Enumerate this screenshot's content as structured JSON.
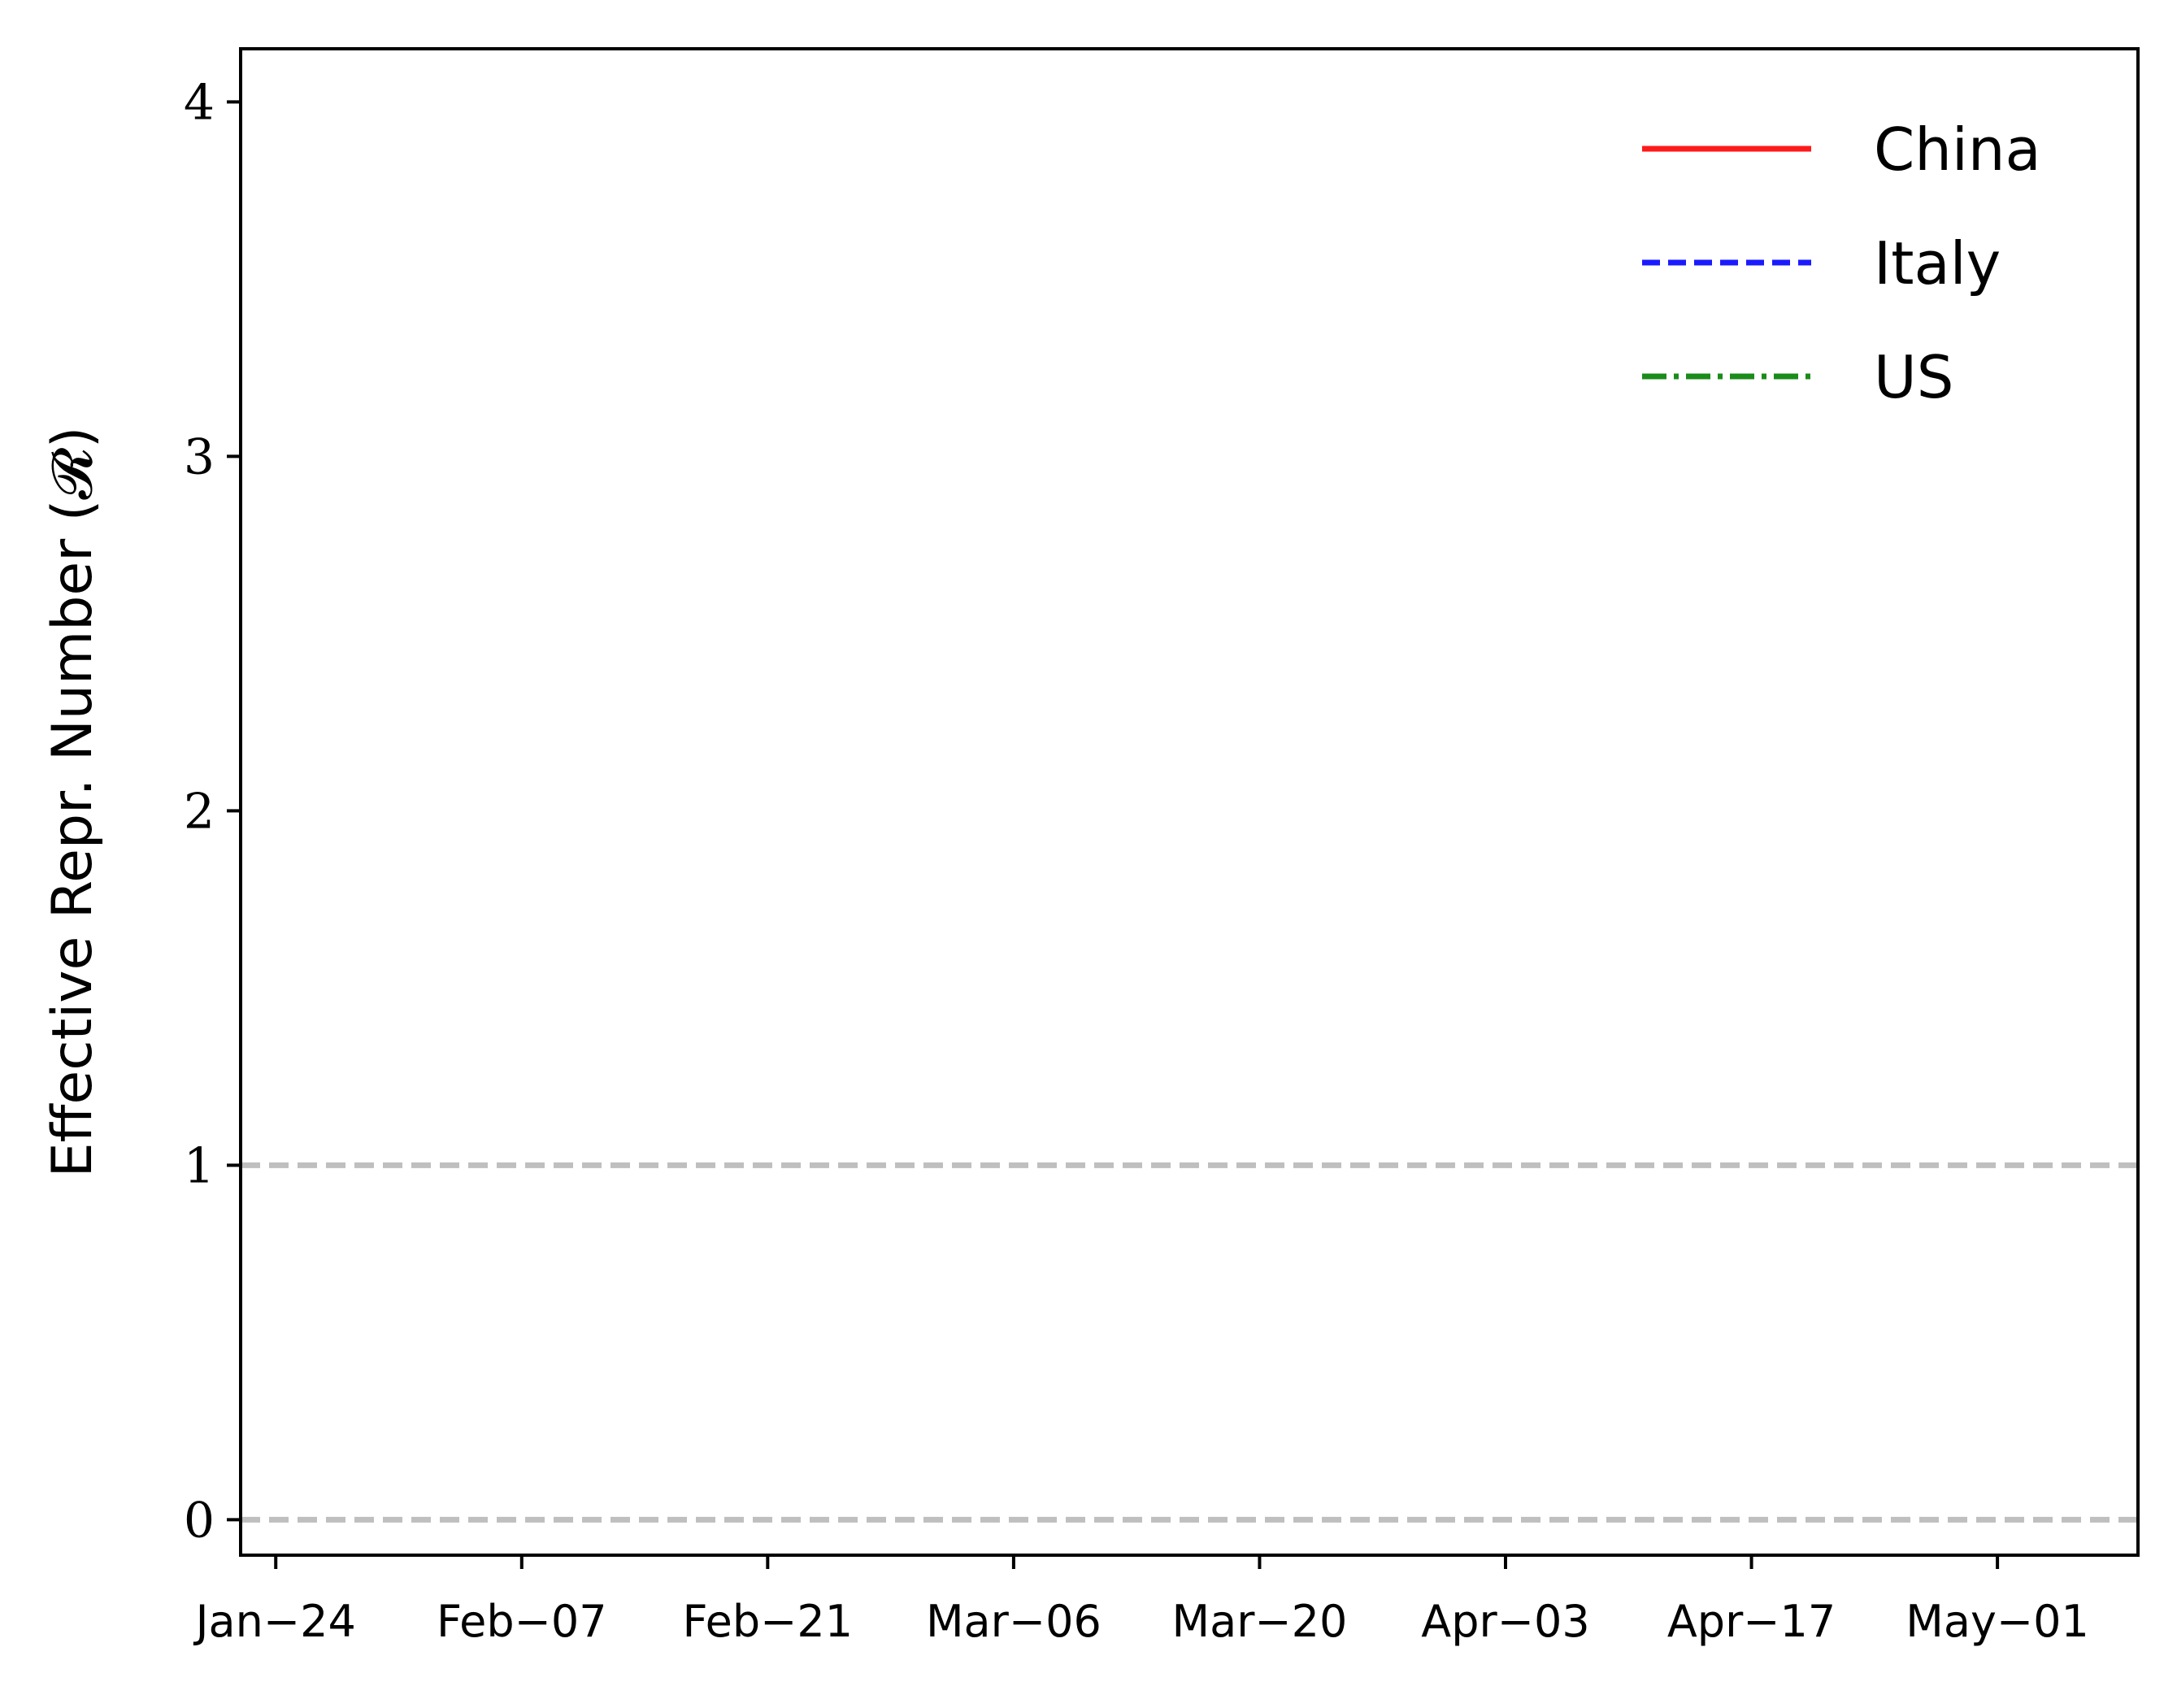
{
  "chart_data": {
    "type": "line",
    "ylabel": "Effective Repr. Number (𝓡)",
    "xlabel": "",
    "ylim": [
      -0.1,
      4.15
    ],
    "xlim": [
      "2020-01-22",
      "2020-05-09"
    ],
    "x_ticks": [
      {
        "date": "2020-01-24",
        "label": "Jan−24"
      },
      {
        "date": "2020-02-07",
        "label": "Feb−07"
      },
      {
        "date": "2020-02-21",
        "label": "Feb−21"
      },
      {
        "date": "2020-03-06",
        "label": "Mar−06"
      },
      {
        "date": "2020-03-20",
        "label": "Mar−20"
      },
      {
        "date": "2020-04-03",
        "label": "Apr−03"
      },
      {
        "date": "2020-04-17",
        "label": "Apr−17"
      },
      {
        "date": "2020-05-01",
        "label": "May−01"
      }
    ],
    "y_ticks": [
      {
        "value": 0,
        "label": "0"
      },
      {
        "value": 1,
        "label": "1"
      },
      {
        "value": 2,
        "label": "2"
      },
      {
        "value": 3,
        "label": "3"
      },
      {
        "value": 4,
        "label": "4"
      }
    ],
    "reference_lines": [
      {
        "y": 0,
        "color": "#bfbfbf",
        "style": "dashed"
      },
      {
        "y": 1,
        "color": "#bfbfbf",
        "style": "dashed"
      }
    ],
    "series": [
      {
        "name": "China",
        "color": "#ff1a1a",
        "style": "solid",
        "points": []
      },
      {
        "name": "Italy",
        "color": "#1a1aff",
        "style": "dashed",
        "points": []
      },
      {
        "name": "US",
        "color": "#1a8c1a",
        "style": "dashdot",
        "points": []
      }
    ],
    "legend": "top-right",
    "grid": false
  }
}
